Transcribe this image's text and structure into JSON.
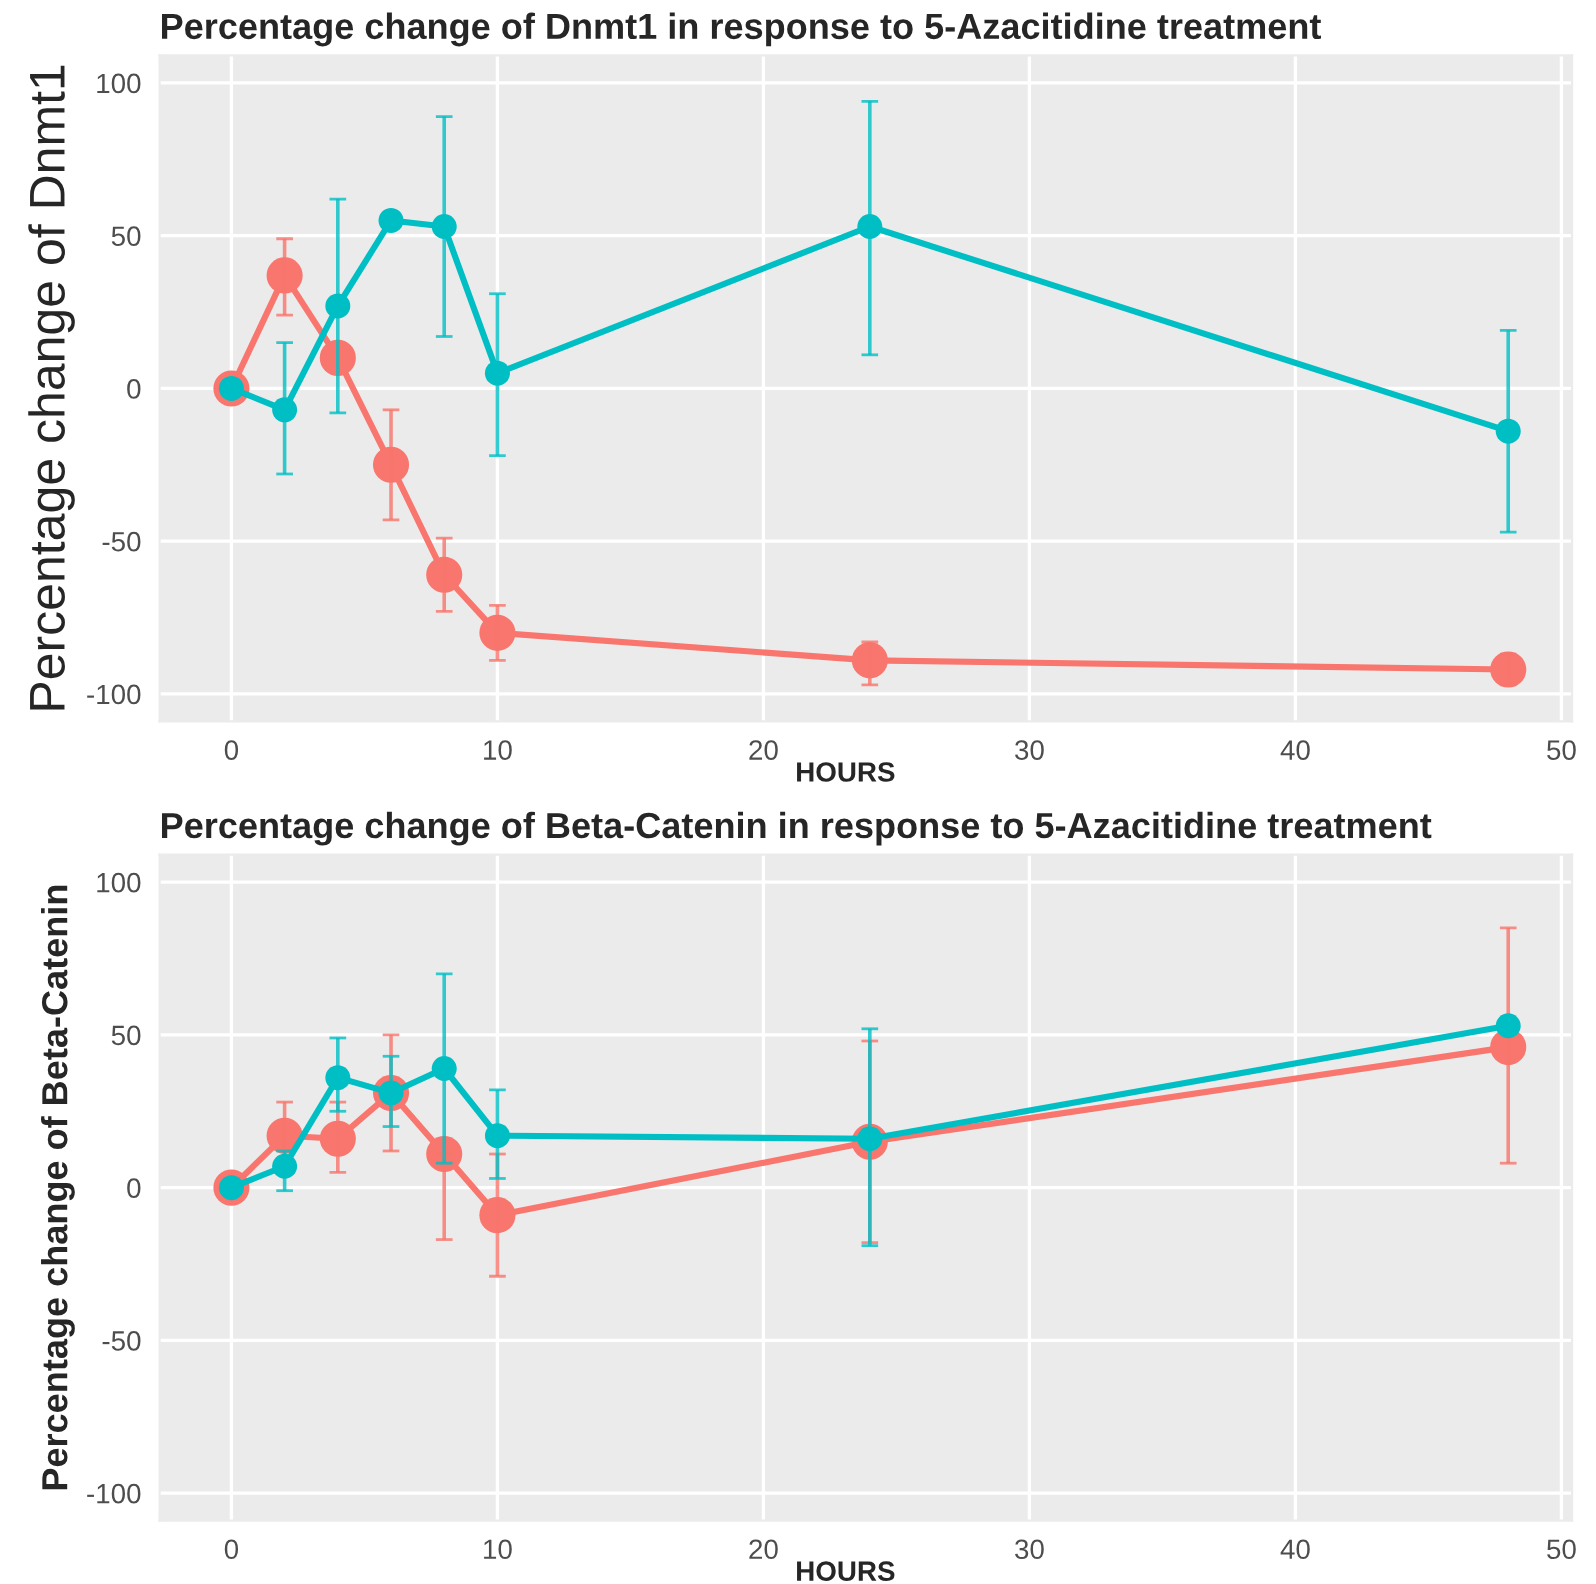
{
  "chart_data": [
    {
      "type": "line",
      "title": "Percentage change of Dnmt1 in response to 5-Azacitidine treatment",
      "xlabel": "HOURS",
      "ylabel": "Percentage change of Dnmt1",
      "x": [
        0,
        2,
        4,
        6,
        8,
        10,
        24,
        48
      ],
      "xlim": [
        -2.7,
        50.4
      ],
      "xticks": [
        0,
        10,
        20,
        30,
        40,
        50
      ],
      "ylim": [
        -109,
        109
      ],
      "yticks": [
        -100,
        -50,
        0,
        50,
        100
      ],
      "grid": true,
      "legend": false,
      "marker": "circle",
      "line_style": "solid",
      "series": [
        {
          "color": "#f8766d",
          "values": [
            0,
            37,
            10,
            -25,
            -61,
            -80,
            -89,
            -92
          ],
          "errors": [
            null,
            [
              24,
              49
            ],
            null,
            [
              -43,
              -7
            ],
            [
              -73,
              -49
            ],
            [
              -89,
              -71
            ],
            [
              -97,
              -83
            ],
            [
              -97,
              -87
            ]
          ]
        },
        {
          "color": "#00bfc4",
          "values": [
            0,
            -7,
            27,
            55,
            53,
            5,
            53,
            -14
          ],
          "errors": [
            null,
            [
              -28,
              15
            ],
            [
              -8,
              62
            ],
            null,
            [
              17,
              89
            ],
            [
              -22,
              31
            ],
            [
              11,
              94
            ],
            [
              -47,
              19
            ]
          ]
        }
      ]
    },
    {
      "type": "line",
      "title": "Percentage change of Beta-Catenin in response to 5-Azacitidine treatment",
      "xlabel": "HOURS",
      "ylabel": "Percentage change of Beta-Catenin",
      "x": [
        0,
        2,
        4,
        6,
        8,
        10,
        24,
        48
      ],
      "xlim": [
        -2.7,
        50.4
      ],
      "xticks": [
        0,
        10,
        20,
        30,
        40,
        50
      ],
      "ylim": [
        -109,
        109
      ],
      "yticks": [
        -100,
        -50,
        0,
        50,
        100
      ],
      "grid": true,
      "legend": false,
      "marker": "circle",
      "line_style": "solid",
      "series": [
        {
          "color": "#f8766d",
          "values": [
            0,
            17,
            16,
            31,
            11,
            -9,
            15,
            46
          ],
          "errors": [
            null,
            [
              5,
              28
            ],
            [
              5,
              28
            ],
            [
              12,
              50
            ],
            [
              -17,
              11
            ],
            [
              -29,
              11
            ],
            [
              -18,
              48
            ],
            [
              8,
              85
            ]
          ]
        },
        {
          "color": "#00bfc4",
          "values": [
            0,
            7,
            36,
            31,
            39,
            17,
            16,
            53
          ],
          "errors": [
            null,
            [
              -1,
              12
            ],
            [
              25,
              49
            ],
            [
              20,
              43
            ],
            [
              8,
              70
            ],
            [
              3,
              32
            ],
            [
              -19,
              52
            ],
            null
          ]
        }
      ]
    }
  ]
}
